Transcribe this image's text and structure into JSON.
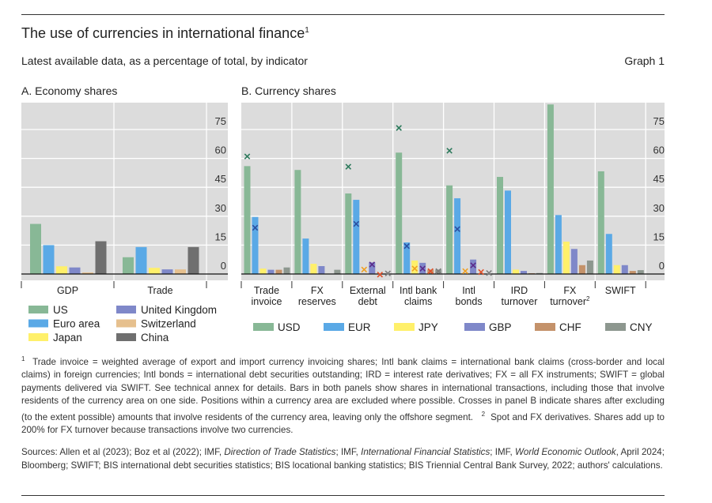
{
  "header": {
    "title": "The use of currencies in international finance",
    "title_note": "1",
    "subtitle": "Latest available data, as a percentage of total, by indicator",
    "graph_label": "Graph 1"
  },
  "chart_data": [
    {
      "type": "bar",
      "panel_title": "A. Economy shares",
      "categories": [
        "GDP",
        "Trade"
      ],
      "yticks": [
        0,
        15,
        30,
        45,
        60,
        75
      ],
      "ylim": [
        -3,
        88
      ],
      "grid": true,
      "legend_placement": "bottom",
      "series": [
        {
          "name": "US",
          "color": "#88b896",
          "values": [
            26,
            8.7
          ]
        },
        {
          "name": "Euro area",
          "color": "#5aa9e6",
          "values": [
            15,
            14
          ]
        },
        {
          "name": "Japan",
          "color": "#fff06a",
          "values": [
            4,
            3.2
          ]
        },
        {
          "name": "United Kingdom",
          "color": "#7f88c9",
          "values": [
            3.4,
            2.4
          ]
        },
        {
          "name": "Switzerland",
          "color": "#e6c08e",
          "values": [
            0.8,
            2.4
          ]
        },
        {
          "name": "China",
          "color": "#6f6f6f",
          "values": [
            17,
            14
          ]
        }
      ]
    },
    {
      "type": "bar",
      "panel_title": "B. Currency shares",
      "categories": [
        [
          "Trade",
          "invoice"
        ],
        [
          "FX",
          "reserves"
        ],
        [
          "External",
          "debt"
        ],
        [
          "Intl bank",
          "claims"
        ],
        [
          "Intl",
          "bonds"
        ],
        [
          "IRD",
          "turnover"
        ],
        [
          "FX",
          "turnover"
        ],
        [
          "SWIFT"
        ]
      ],
      "category_notes": [
        "",
        "",
        "",
        "",
        "",
        "",
        "2",
        ""
      ],
      "yticks": [
        0,
        15,
        30,
        45,
        60,
        75
      ],
      "ylim": [
        -3,
        88
      ],
      "grid": true,
      "legend_placement": "bottom",
      "series": [
        {
          "name": "USD",
          "color": "#88b896",
          "cross_color": "#2d7a5c",
          "values": [
            56,
            54,
            41.8,
            63,
            46,
            50.4,
            88,
            53.3
          ],
          "crosses": [
            61,
            null,
            55.7,
            75.8,
            64,
            null,
            null,
            null
          ]
        },
        {
          "name": "EUR",
          "color": "#5aa9e6",
          "cross_color": "#2a4ea0",
          "values": [
            29.6,
            18.4,
            38.5,
            16.4,
            39.3,
            43.3,
            30.6,
            20.8
          ],
          "crosses": [
            24,
            null,
            26,
            14.5,
            23.3,
            null,
            null,
            null
          ]
        },
        {
          "name": "JPY",
          "color": "#fff06a",
          "cross_color": "#f0a020",
          "values": [
            2.8,
            5.3,
            0,
            7,
            0,
            2.3,
            16.8,
            4.6
          ],
          "crosses": [
            null,
            null,
            2.3,
            2.8,
            1.5,
            null,
            null,
            null
          ]
        },
        {
          "name": "GBP",
          "color": "#7f88c9",
          "cross_color": "#5a2a8a",
          "values": [
            2.2,
            4.1,
            6,
            5.8,
            7.5,
            1.6,
            13,
            4.6
          ],
          "crosses": [
            null,
            null,
            4.9,
            2.8,
            4.5,
            null,
            null,
            null
          ]
        },
        {
          "name": "CHF",
          "color": "#c4926a",
          "cross_color": "#e0502a",
          "values": [
            2.2,
            0,
            0,
            2.3,
            0,
            0.4,
            4.6,
            1.6
          ],
          "crosses": [
            null,
            null,
            -0.3,
            1.5,
            1,
            null,
            null,
            null
          ]
        },
        {
          "name": "CNY",
          "color": "#8d978f",
          "cross_color": "#7a7a7a",
          "values": [
            3.4,
            2.2,
            0,
            2.3,
            0,
            0.5,
            7,
            2
          ],
          "crosses": [
            null,
            null,
            0.3,
            1.5,
            0.5,
            null,
            null,
            null
          ]
        }
      ]
    }
  ],
  "footnotes": {
    "n1_mark": "1",
    "n1": "Trade invoice = weighted average of export and import currency invoicing shares; Intl bank claims = international bank claims (cross-border and local claims) in foreign currencies; Intl bonds = international debt securities outstanding; IRD = interest rate derivatives; FX = all FX instruments; SWIFT = global payments delivered via SWIFT. See technical annex for details. Bars in both panels show shares in international transactions, including those that involve residents of the currency area on one side. Positions within a currency area are excluded where possible. Crosses in panel B indicate shares after excluding (to the extent possible) amounts that involve residents of the currency area, leaving only the offshore segment.",
    "n2_mark": "2",
    "n2": "Spot and FX derivatives. Shares add up to 200% for FX turnover because transactions involve two currencies.",
    "sources": {
      "s1": "Sources: Allen et al (2023); Boz et al (2022); IMF, ",
      "i1": "Direction of Trade Statistics",
      "s2": "; IMF, ",
      "i2": "International Financial Statistics",
      "s3": "; IMF, ",
      "i3": "World Economic Outlook",
      "s4": ", April 2024; Bloomberg; SWIFT; BIS international debt securities statistics; BIS locational banking statistics; BIS Triennial Central Bank Survey, 2022; authors' calculations."
    }
  }
}
